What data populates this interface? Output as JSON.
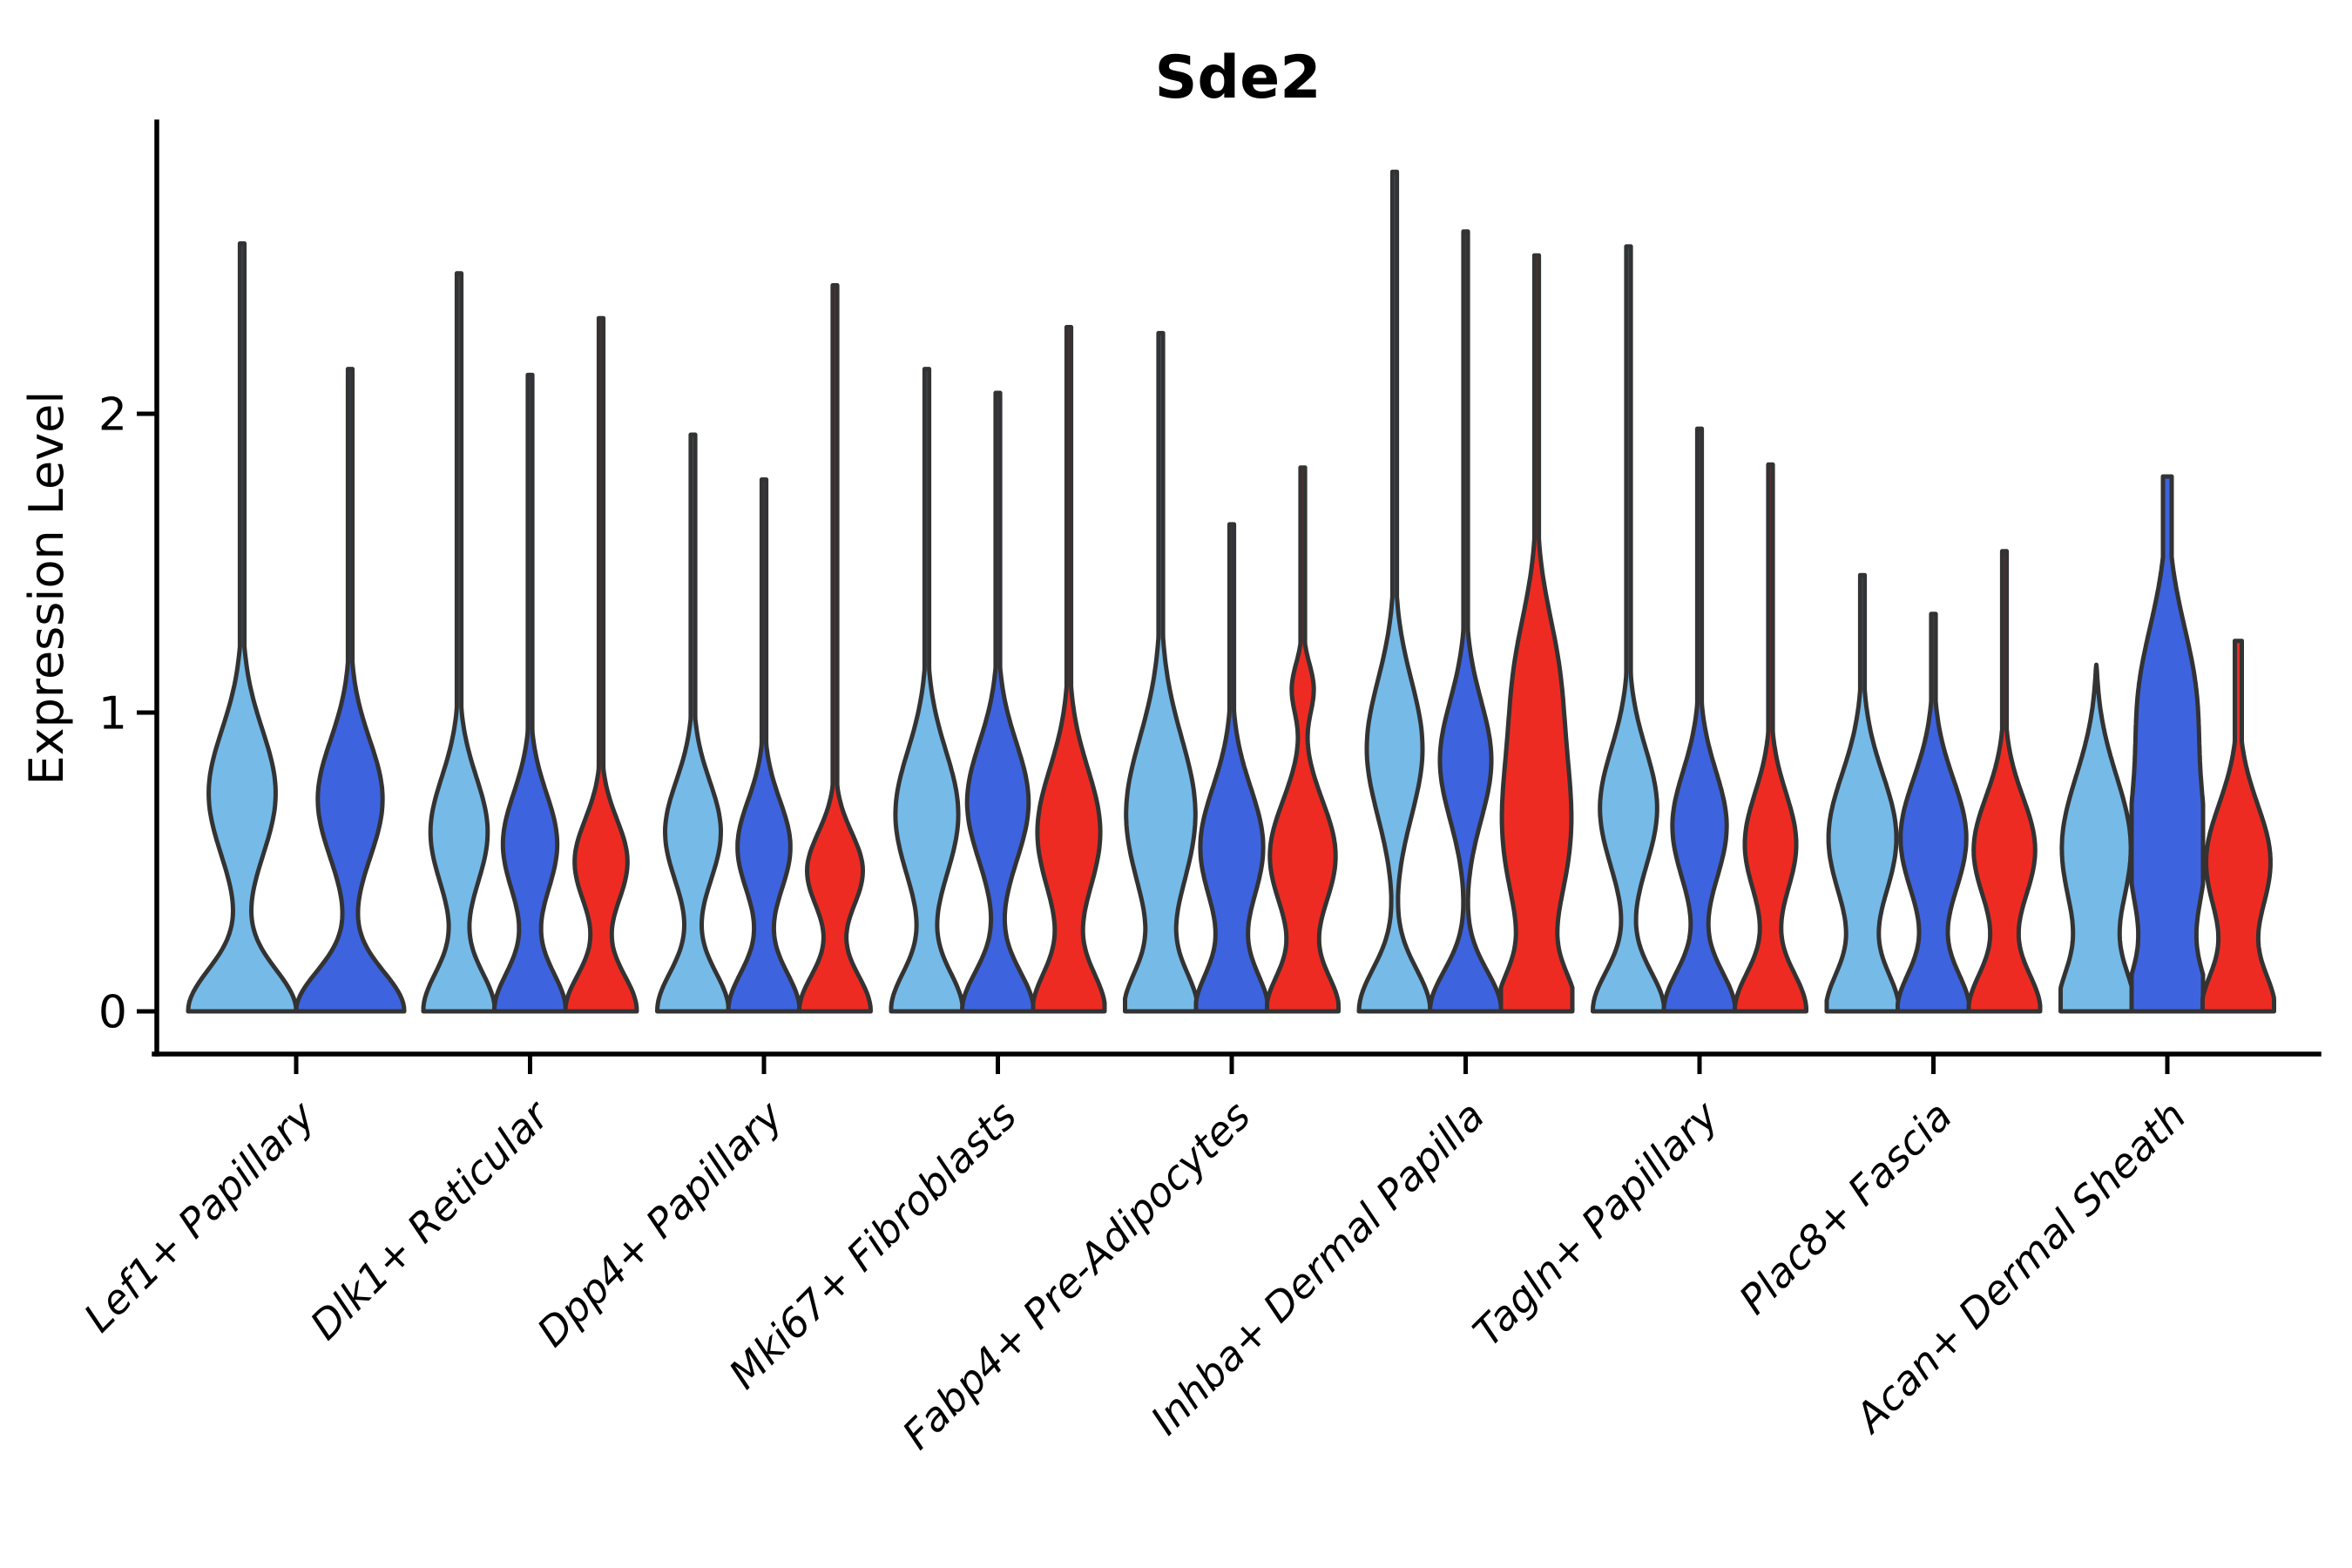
{
  "chart_data": {
    "type": "violin",
    "title": "Sde2",
    "ylabel": "Expression Level",
    "yticks": [
      0,
      1,
      2
    ],
    "ylim": [
      -0.14,
      2.98
    ],
    "grid": false,
    "legend": "none",
    "series": [
      "light_blue",
      "dark_blue",
      "red"
    ],
    "colors": {
      "light_blue": "#76BAE8",
      "dark_blue": "#3D63DF",
      "red": "#EE2B22",
      "outline": "#333333",
      "axis": "#000000"
    },
    "categories": [
      "Lef1+ Papillary",
      "Dlk1+ Reticular",
      "Dpp4+ Papillary",
      "Mki67+ Fibroblasts",
      "Fabp4+ Pre-Adipocytes",
      "Inhba+ Dermal Papilla",
      "Tagln+ Papillary",
      "Plac8+ Fascia",
      "Acan+ Dermal Sheath"
    ],
    "groups": [
      {
        "category": "Lef1+ Papillary",
        "violins": [
          {
            "series": "light_blue",
            "max": 2.57,
            "mode": 0.73,
            "mode_sigma": 0.3,
            "mode_amp": 0.62,
            "foot_sigma": 0.2,
            "shape": "spike"
          },
          {
            "series": "dark_blue",
            "max": 2.15,
            "mode": 0.71,
            "mode_sigma": 0.28,
            "mode_amp": 0.6,
            "foot_sigma": 0.19,
            "shape": "spike"
          }
        ]
      },
      {
        "category": "Dlk1+ Reticular",
        "violins": [
          {
            "series": "light_blue",
            "max": 2.47,
            "mode": 0.6,
            "mode_sigma": 0.26,
            "mode_amp": 0.8,
            "foot_sigma": 0.19,
            "shape": "spike"
          },
          {
            "series": "dark_blue",
            "max": 2.13,
            "mode": 0.56,
            "mode_sigma": 0.24,
            "mode_amp": 0.76,
            "foot_sigma": 0.19,
            "shape": "spike"
          },
          {
            "series": "red",
            "max": 2.32,
            "mode": 0.5,
            "mode_sigma": 0.2,
            "mode_amp": 0.74,
            "foot_sigma": 0.18,
            "shape": "spike"
          }
        ]
      },
      {
        "category": "Dpp4+ Papillary",
        "violins": [
          {
            "series": "light_blue",
            "max": 1.93,
            "mode": 0.6,
            "mode_sigma": 0.24,
            "mode_amp": 0.78,
            "foot_sigma": 0.19,
            "shape": "spike"
          },
          {
            "series": "dark_blue",
            "max": 1.78,
            "mode": 0.55,
            "mode_sigma": 0.22,
            "mode_amp": 0.74,
            "foot_sigma": 0.19,
            "shape": "spike"
          },
          {
            "series": "red",
            "max": 2.43,
            "mode": 0.47,
            "mode_sigma": 0.18,
            "mode_amp": 0.78,
            "foot_sigma": 0.18,
            "shape": "spike"
          }
        ]
      },
      {
        "category": "Mki67+ Fibroblasts",
        "violins": [
          {
            "series": "light_blue",
            "max": 2.15,
            "mode": 0.66,
            "mode_sigma": 0.3,
            "mode_amp": 0.88,
            "foot_sigma": 0.19,
            "shape": "spike"
          },
          {
            "series": "dark_blue",
            "max": 2.07,
            "mode": 0.7,
            "mode_sigma": 0.28,
            "mode_amp": 0.86,
            "foot_sigma": 0.19,
            "shape": "spike"
          },
          {
            "series": "red",
            "max": 2.29,
            "mode": 0.6,
            "mode_sigma": 0.3,
            "mode_amp": 0.88,
            "foot_sigma": 0.19,
            "shape": "spike"
          }
        ]
      },
      {
        "category": "Fabp4+ Pre-Adipocytes",
        "violins": [
          {
            "series": "light_blue",
            "max": 2.27,
            "mode": 0.66,
            "mode_sigma": 0.36,
            "mode_amp": 0.97,
            "foot_sigma": 0.19,
            "shape": "spike"
          },
          {
            "series": "dark_blue",
            "max": 1.63,
            "mode": 0.55,
            "mode_sigma": 0.28,
            "mode_amp": 0.88,
            "foot_sigma": 0.19,
            "shape": "spike"
          },
          {
            "series": "red",
            "max": 1.82,
            "mode": 0.52,
            "mode_sigma": 0.26,
            "mode_amp": 0.92,
            "foot_sigma": 0.18,
            "shape": "spike",
            "mode2": {
              "pos": 1.08,
              "sigma": 0.12,
              "amp": 0.3
            }
          }
        ]
      },
      {
        "category": "Inhba+ Dermal Papilla",
        "violins": [
          {
            "series": "light_blue",
            "max": 2.81,
            "mode": 0.88,
            "mode_sigma": 0.32,
            "mode_amp": 0.78,
            "foot_sigma": 0.2,
            "shape": "spike"
          },
          {
            "series": "dark_blue",
            "max": 2.61,
            "mode": 0.84,
            "mode_sigma": 0.28,
            "mode_amp": 0.72,
            "foot_sigma": 0.19,
            "shape": "spike"
          },
          {
            "series": "red",
            "max": 2.53,
            "mode": 0.62,
            "mode_sigma": 0.42,
            "mode_amp": 0.95,
            "foot_sigma": 0.18,
            "shape": "spike",
            "mode2": {
              "pos": 1.15,
              "sigma": 0.3,
              "amp": 0.45
            }
          }
        ]
      },
      {
        "category": "Tagln+ Papillary",
        "violins": [
          {
            "series": "light_blue",
            "max": 2.56,
            "mode": 0.68,
            "mode_sigma": 0.28,
            "mode_amp": 0.8,
            "foot_sigma": 0.19,
            "shape": "spike"
          },
          {
            "series": "dark_blue",
            "max": 1.95,
            "mode": 0.62,
            "mode_sigma": 0.26,
            "mode_amp": 0.76,
            "foot_sigma": 0.19,
            "shape": "spike"
          },
          {
            "series": "red",
            "max": 1.83,
            "mode": 0.56,
            "mode_sigma": 0.24,
            "mode_amp": 0.72,
            "foot_sigma": 0.19,
            "shape": "spike"
          }
        ]
      },
      {
        "category": "Plac8+ Fascia",
        "violins": [
          {
            "series": "light_blue",
            "max": 1.46,
            "mode": 0.58,
            "mode_sigma": 0.3,
            "mode_amp": 0.95,
            "foot_sigma": 0.19,
            "shape": "spike"
          },
          {
            "series": "dark_blue",
            "max": 1.33,
            "mode": 0.58,
            "mode_sigma": 0.28,
            "mode_amp": 0.92,
            "foot_sigma": 0.19,
            "shape": "spike"
          },
          {
            "series": "red",
            "max": 1.54,
            "mode": 0.54,
            "mode_sigma": 0.25,
            "mode_amp": 0.86,
            "foot_sigma": 0.19,
            "shape": "spike"
          }
        ]
      },
      {
        "category": "Acan+ Dermal Sheath",
        "violins": [
          {
            "series": "light_blue",
            "max": 1.16,
            "mode": 0.55,
            "mode_sigma": 0.34,
            "mode_amp": 0.97,
            "foot_sigma": 0.2,
            "shape": "dome"
          },
          {
            "series": "dark_blue",
            "max": 1.79,
            "mode": 0.5,
            "mode_sigma": 0.35,
            "mode_amp": 1.0,
            "foot_sigma": 0.2,
            "shape": "spike",
            "mode2": {
              "pos": 1.05,
              "sigma": 0.35,
              "amp": 0.75
            },
            "tip_half_width": 5
          },
          {
            "series": "red",
            "max": 1.24,
            "mode": 0.5,
            "mode_sigma": 0.27,
            "mode_amp": 0.9,
            "foot_sigma": 0.19,
            "shape": "spike",
            "tip_half_width": 4
          }
        ]
      }
    ]
  }
}
